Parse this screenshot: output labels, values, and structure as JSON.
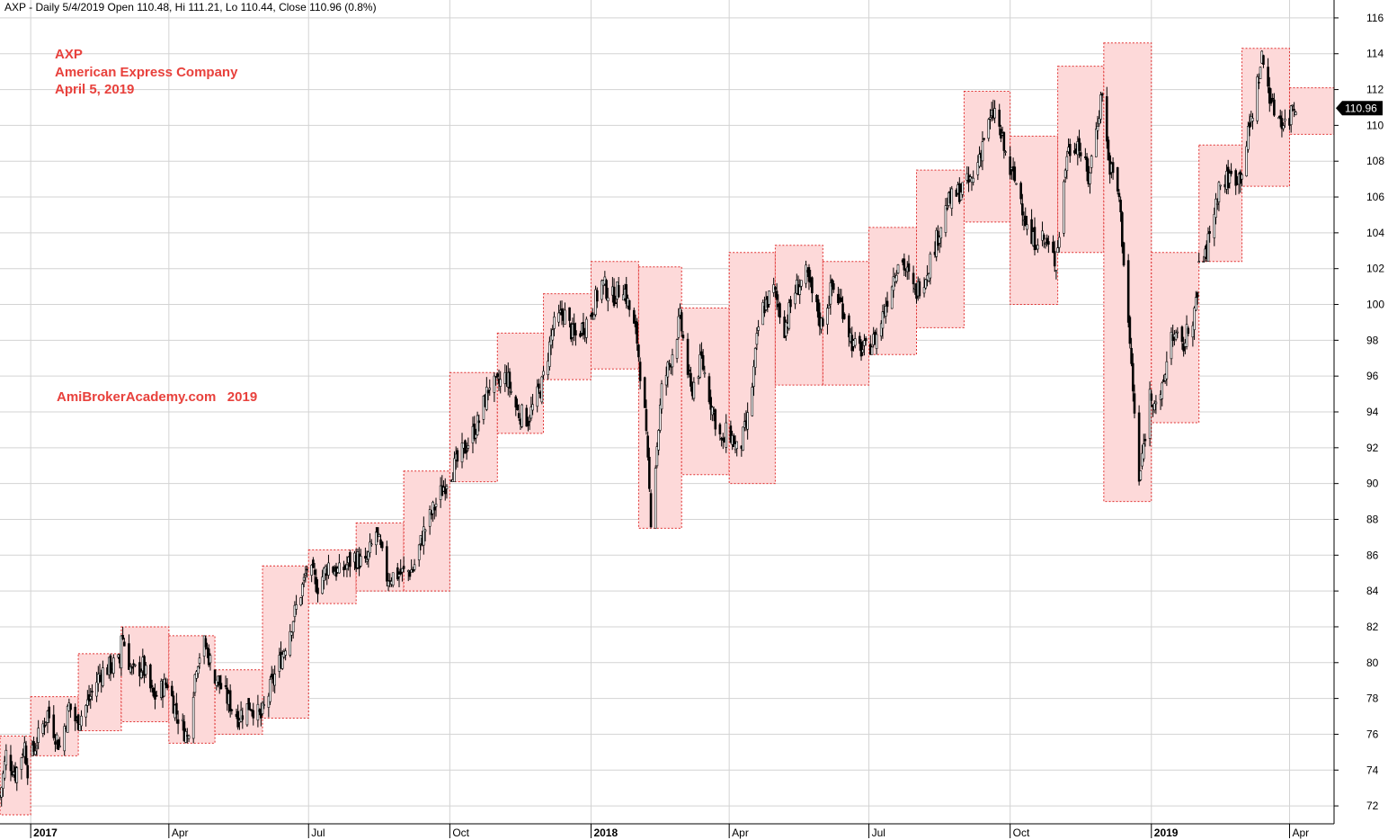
{
  "header": "AXP - Daily 5/4/2019 Open 110.48, Hi 111.21, Lo 110.44, Close 110.96 (0.8%)",
  "annotations": {
    "ticker": "AXP",
    "company": "American Express Company",
    "date": "April 5, 2019",
    "watermark": "AmiBrokerAcademy.com   2019"
  },
  "last_price_label": "110.96",
  "colors": {
    "box_fill": "#fdd9d9",
    "box_border": "#e03030",
    "annotation": "#e8413c",
    "candle": "#000000",
    "grid": "#d3d3d3"
  },
  "chart_data": {
    "type": "candlestick",
    "ylim": [
      71,
      117
    ],
    "y_ticks": [
      72,
      74,
      76,
      78,
      80,
      82,
      84,
      86,
      88,
      90,
      92,
      94,
      96,
      98,
      100,
      102,
      104,
      106,
      108,
      110,
      112,
      114,
      116
    ],
    "x_range": [
      "2016-12-12",
      "2019-04-30"
    ],
    "x_ticks": [
      {
        "date": "2017-01-01",
        "label": "2017",
        "bold": true
      },
      {
        "date": "2017-04-01",
        "label": "Apr",
        "bold": false
      },
      {
        "date": "2017-07-01",
        "label": "Jul",
        "bold": false
      },
      {
        "date": "2017-10-01",
        "label": "Oct",
        "bold": false
      },
      {
        "date": "2018-01-01",
        "label": "2018",
        "bold": true
      },
      {
        "date": "2018-04-01",
        "label": "Apr",
        "bold": false
      },
      {
        "date": "2018-07-01",
        "label": "Jul",
        "bold": false
      },
      {
        "date": "2018-10-01",
        "label": "Oct",
        "bold": false
      },
      {
        "date": "2019-01-01",
        "label": "2019",
        "bold": true
      },
      {
        "date": "2019-04-01",
        "label": "Apr",
        "bold": false
      }
    ],
    "monthly_ranges": [
      {
        "month": "2016-12",
        "high": 75.9,
        "low": 71.5
      },
      {
        "month": "2017-01",
        "high": 78.1,
        "low": 74.8
      },
      {
        "month": "2017-02",
        "high": 80.5,
        "low": 76.2
      },
      {
        "month": "2017-03",
        "high": 82.0,
        "low": 76.7
      },
      {
        "month": "2017-04",
        "high": 81.5,
        "low": 75.5
      },
      {
        "month": "2017-05",
        "high": 79.6,
        "low": 76.0
      },
      {
        "month": "2017-06",
        "high": 85.4,
        "low": 76.9
      },
      {
        "month": "2017-07",
        "high": 86.3,
        "low": 83.3
      },
      {
        "month": "2017-08",
        "high": 87.8,
        "low": 84.0
      },
      {
        "month": "2017-09",
        "high": 90.7,
        "low": 84.0
      },
      {
        "month": "2017-10",
        "high": 96.2,
        "low": 90.1
      },
      {
        "month": "2017-11",
        "high": 98.4,
        "low": 92.8
      },
      {
        "month": "2017-12",
        "high": 100.6,
        "low": 95.8
      },
      {
        "month": "2018-01",
        "high": 102.4,
        "low": 96.4
      },
      {
        "month": "2018-02",
        "high": 102.1,
        "low": 87.5
      },
      {
        "month": "2018-03",
        "high": 99.8,
        "low": 90.5
      },
      {
        "month": "2018-04",
        "high": 102.9,
        "low": 90.0
      },
      {
        "month": "2018-05",
        "high": 103.3,
        "low": 95.5
      },
      {
        "month": "2018-06",
        "high": 102.4,
        "low": 95.5
      },
      {
        "month": "2018-07",
        "high": 104.3,
        "low": 97.2
      },
      {
        "month": "2018-08",
        "high": 107.5,
        "low": 98.7
      },
      {
        "month": "2018-09",
        "high": 111.9,
        "low": 104.6
      },
      {
        "month": "2018-10",
        "high": 109.4,
        "low": 100.0
      },
      {
        "month": "2018-11",
        "high": 113.3,
        "low": 102.9
      },
      {
        "month": "2018-12",
        "high": 114.6,
        "low": 89.0
      },
      {
        "month": "2019-01",
        "high": 102.9,
        "low": 93.4
      },
      {
        "month": "2019-02",
        "high": 108.9,
        "low": 102.4
      },
      {
        "month": "2019-03",
        "high": 114.3,
        "low": 106.6
      },
      {
        "month": "2019-04",
        "high": 112.1,
        "low": 109.5
      }
    ],
    "price_path": [
      [
        "2016-12-12",
        72.5
      ],
      [
        "2016-12-16",
        74.9
      ],
      [
        "2016-12-22",
        73.8
      ],
      [
        "2016-12-28",
        75.4
      ],
      [
        "2016-12-30",
        74.1
      ],
      [
        "2017-01-05",
        75.6
      ],
      [
        "2017-01-12",
        77.2
      ],
      [
        "2017-01-20",
        75.3
      ],
      [
        "2017-01-26",
        77.6
      ],
      [
        "2017-01-31",
        76.6
      ],
      [
        "2017-02-08",
        77.9
      ],
      [
        "2017-02-15",
        79.4
      ],
      [
        "2017-02-22",
        79.8
      ],
      [
        "2017-02-28",
        80.0
      ],
      [
        "2017-03-01",
        81.7
      ],
      [
        "2017-03-08",
        79.4
      ],
      [
        "2017-03-15",
        79.8
      ],
      [
        "2017-03-22",
        78.0
      ],
      [
        "2017-03-31",
        78.9
      ],
      [
        "2017-04-06",
        77.2
      ],
      [
        "2017-04-13",
        75.8
      ],
      [
        "2017-04-19",
        80.0
      ],
      [
        "2017-04-24",
        81.2
      ],
      [
        "2017-04-30",
        79.5
      ],
      [
        "2017-05-08",
        78.1
      ],
      [
        "2017-05-16",
        77.0
      ],
      [
        "2017-05-24",
        77.7
      ],
      [
        "2017-05-31",
        76.9
      ],
      [
        "2017-06-07",
        78.8
      ],
      [
        "2017-06-14",
        80.5
      ],
      [
        "2017-06-21",
        82.5
      ],
      [
        "2017-06-28",
        84.5
      ],
      [
        "2017-06-30",
        85.3
      ],
      [
        "2017-07-07",
        84.3
      ],
      [
        "2017-07-14",
        85.5
      ],
      [
        "2017-07-21",
        85.0
      ],
      [
        "2017-07-31",
        85.9
      ],
      [
        "2017-08-07",
        85.4
      ],
      [
        "2017-08-14",
        87.3
      ],
      [
        "2017-08-21",
        84.8
      ],
      [
        "2017-08-31",
        85.0
      ],
      [
        "2017-09-07",
        85.2
      ],
      [
        "2017-09-14",
        87.3
      ],
      [
        "2017-09-21",
        88.7
      ],
      [
        "2017-09-30",
        90.4
      ],
      [
        "2017-10-06",
        91.2
      ],
      [
        "2017-10-13",
        92.3
      ],
      [
        "2017-10-20",
        93.5
      ],
      [
        "2017-10-27",
        95.6
      ],
      [
        "2017-10-31",
        95.4
      ],
      [
        "2017-11-07",
        96.0
      ],
      [
        "2017-11-14",
        94.0
      ],
      [
        "2017-11-21",
        93.6
      ],
      [
        "2017-11-30",
        95.5
      ],
      [
        "2017-12-07",
        98.6
      ],
      [
        "2017-12-14",
        99.6
      ],
      [
        "2017-12-21",
        98.1
      ],
      [
        "2017-12-31",
        99.3
      ],
      [
        "2018-01-08",
        101.2
      ],
      [
        "2018-01-15",
        100.4
      ],
      [
        "2018-01-22",
        101.1
      ],
      [
        "2018-01-31",
        98.0
      ],
      [
        "2018-02-05",
        93.8
      ],
      [
        "2018-02-09",
        88.1
      ],
      [
        "2018-02-16",
        95.2
      ],
      [
        "2018-02-22",
        97.0
      ],
      [
        "2018-02-28",
        99.2
      ],
      [
        "2018-03-07",
        95.1
      ],
      [
        "2018-03-14",
        96.9
      ],
      [
        "2018-03-21",
        94.2
      ],
      [
        "2018-03-28",
        92.0
      ],
      [
        "2018-03-31",
        93.2
      ],
      [
        "2018-04-07",
        91.6
      ],
      [
        "2018-04-14",
        93.9
      ],
      [
        "2018-04-21",
        99.5
      ],
      [
        "2018-04-30",
        100.8
      ],
      [
        "2018-05-07",
        98.7
      ],
      [
        "2018-05-14",
        100.8
      ],
      [
        "2018-05-21",
        101.6
      ],
      [
        "2018-05-31",
        98.9
      ],
      [
        "2018-06-07",
        101.0
      ],
      [
        "2018-06-14",
        99.8
      ],
      [
        "2018-06-21",
        97.6
      ],
      [
        "2018-06-30",
        97.4
      ],
      [
        "2018-07-07",
        98.4
      ],
      [
        "2018-07-14",
        100.7
      ],
      [
        "2018-07-21",
        102.8
      ],
      [
        "2018-07-31",
        100.6
      ],
      [
        "2018-08-07",
        101.7
      ],
      [
        "2018-08-14",
        103.6
      ],
      [
        "2018-08-21",
        105.6
      ],
      [
        "2018-08-31",
        106.5
      ],
      [
        "2018-09-07",
        107.0
      ],
      [
        "2018-09-14",
        109.4
      ],
      [
        "2018-09-21",
        110.8
      ],
      [
        "2018-09-30",
        107.6
      ],
      [
        "2018-10-07",
        106.4
      ],
      [
        "2018-10-14",
        103.4
      ],
      [
        "2018-10-21",
        103.9
      ],
      [
        "2018-10-31",
        102.3
      ],
      [
        "2018-11-07",
        108.5
      ],
      [
        "2018-11-14",
        109.1
      ],
      [
        "2018-11-21",
        107.0
      ],
      [
        "2018-11-30",
        112.0
      ],
      [
        "2018-12-04",
        108.0
      ],
      [
        "2018-12-11",
        106.0
      ],
      [
        "2018-12-17",
        99.0
      ],
      [
        "2018-12-24",
        90.0
      ],
      [
        "2018-12-31",
        95.0
      ],
      [
        "2019-01-07",
        94.5
      ],
      [
        "2019-01-14",
        98.5
      ],
      [
        "2019-01-21",
        97.5
      ],
      [
        "2019-01-31",
        100.2
      ],
      [
        "2019-02-07",
        103.5
      ],
      [
        "2019-02-14",
        106.6
      ],
      [
        "2019-02-21",
        107.1
      ],
      [
        "2019-02-28",
        107.2
      ],
      [
        "2019-03-07",
        110.3
      ],
      [
        "2019-03-14",
        113.8
      ],
      [
        "2019-03-21",
        111.0
      ],
      [
        "2019-03-31",
        109.9
      ],
      [
        "2019-04-03",
        111.3
      ],
      [
        "2019-04-05",
        110.96
      ]
    ],
    "last_close": 110.96
  }
}
